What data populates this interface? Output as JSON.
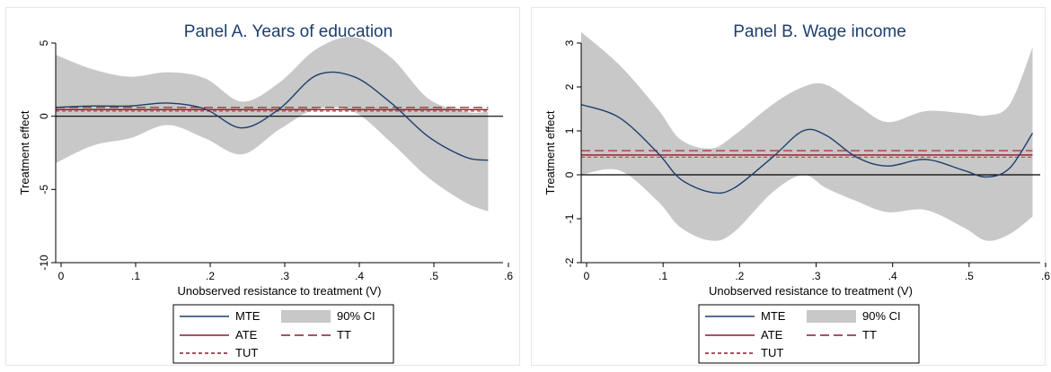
{
  "chart_data": [
    {
      "type": "line",
      "title": "Panel A. Years of education",
      "xlabel": "Unobserved resistance to treatment (V)",
      "ylabel": "Treatment effect",
      "xlim": [
        0,
        0.6
      ],
      "ylim": [
        -10,
        5
      ],
      "x_ticks": [
        0,
        0.1,
        0.2,
        0.3,
        0.4,
        0.5,
        0.6
      ],
      "x_tick_labels": [
        "0",
        ".1",
        ".2",
        ".3",
        ".4",
        ".5",
        ".6"
      ],
      "y_ticks": [
        5,
        0,
        -5,
        -10
      ],
      "y_tick_labels": [
        "5",
        "0",
        "-5",
        "-10"
      ],
      "x": [
        0,
        0.05,
        0.1,
        0.15,
        0.2,
        0.25,
        0.3,
        0.35,
        0.4,
        0.45,
        0.5,
        0.55,
        0.58
      ],
      "series": [
        {
          "name": "MTE",
          "values": [
            0.6,
            0.7,
            0.7,
            0.9,
            0.5,
            -0.8,
            0.5,
            2.8,
            2.7,
            0.9,
            -1.4,
            -2.8,
            -3.0
          ]
        },
        {
          "name": "90% CI",
          "lower": [
            -3.2,
            -2.0,
            -1.5,
            -0.6,
            -1.5,
            -2.6,
            -0.9,
            0.5,
            0.3,
            -1.8,
            -4.2,
            -5.9,
            -6.5
          ],
          "upper": [
            4.2,
            3.2,
            2.7,
            3.0,
            2.6,
            1.0,
            2.3,
            4.6,
            5.4,
            4.0,
            1.2,
            0.3,
            0.3
          ]
        },
        {
          "name": "ATE",
          "constant": 0.45
        },
        {
          "name": "TT",
          "constant": 0.6
        },
        {
          "name": "TUT",
          "constant": 0.35
        }
      ],
      "zero_line": true
    },
    {
      "type": "line",
      "title": "Panel B. Wage income",
      "xlabel": "Unobserved resistance to treatment (V)",
      "ylabel": "Treatment effect",
      "xlim": [
        0,
        0.6
      ],
      "ylim": [
        -2,
        3
      ],
      "x_ticks": [
        0,
        0.1,
        0.2,
        0.3,
        0.4,
        0.5,
        0.6
      ],
      "x_tick_labels": [
        "0",
        ".1",
        ".2",
        ".3",
        ".4",
        ".5",
        ".6"
      ],
      "y_ticks": [
        3,
        2,
        1,
        0,
        -1,
        -2
      ],
      "y_tick_labels": [
        "3",
        "2",
        "1",
        "0",
        "-1",
        "-2"
      ],
      "x": [
        0,
        0.05,
        0.1,
        0.13,
        0.17,
        0.2,
        0.25,
        0.29,
        0.32,
        0.36,
        0.4,
        0.45,
        0.5,
        0.53,
        0.56,
        0.59
      ],
      "series": [
        {
          "name": "MTE",
          "values": [
            1.6,
            1.3,
            0.5,
            -0.1,
            -0.4,
            -0.3,
            0.4,
            1.0,
            0.9,
            0.4,
            0.2,
            0.35,
            0.1,
            -0.05,
            0.15,
            0.95
          ]
        },
        {
          "name": "90% CI",
          "lower": [
            0.0,
            0.1,
            -0.6,
            -1.2,
            -1.5,
            -1.3,
            -0.4,
            0.0,
            -0.3,
            -0.6,
            -0.85,
            -0.8,
            -1.2,
            -1.5,
            -1.35,
            -0.95
          ],
          "upper": [
            3.25,
            2.5,
            1.5,
            0.8,
            0.6,
            0.9,
            1.6,
            2.0,
            2.05,
            1.6,
            1.2,
            1.45,
            1.4,
            1.35,
            1.6,
            2.9
          ]
        },
        {
          "name": "ATE",
          "constant": 0.45
        },
        {
          "name": "TT",
          "constant": 0.55
        },
        {
          "name": "TUT",
          "constant": 0.4
        }
      ],
      "zero_line": true
    }
  ],
  "legend": {
    "items": [
      {
        "label": "MTE",
        "style": "solid",
        "color": "#1c3f6e"
      },
      {
        "label": "90% CI",
        "style": "band",
        "color": "#c8c8c8"
      },
      {
        "label": "ATE",
        "style": "solid",
        "color": "#8b1a2b"
      },
      {
        "label": "TT",
        "style": "long-dash",
        "color": "#8b1a2b"
      },
      {
        "label": "TUT",
        "style": "short-dash",
        "color": "#8b1a2b"
      }
    ]
  },
  "colors": {
    "mte": "#1c3f6e",
    "ci": "#c8c8c8",
    "ate": "#8b1a2b",
    "tt": "#b03a3a",
    "tut": "#c0504d",
    "title": "#1c3f6e"
  }
}
